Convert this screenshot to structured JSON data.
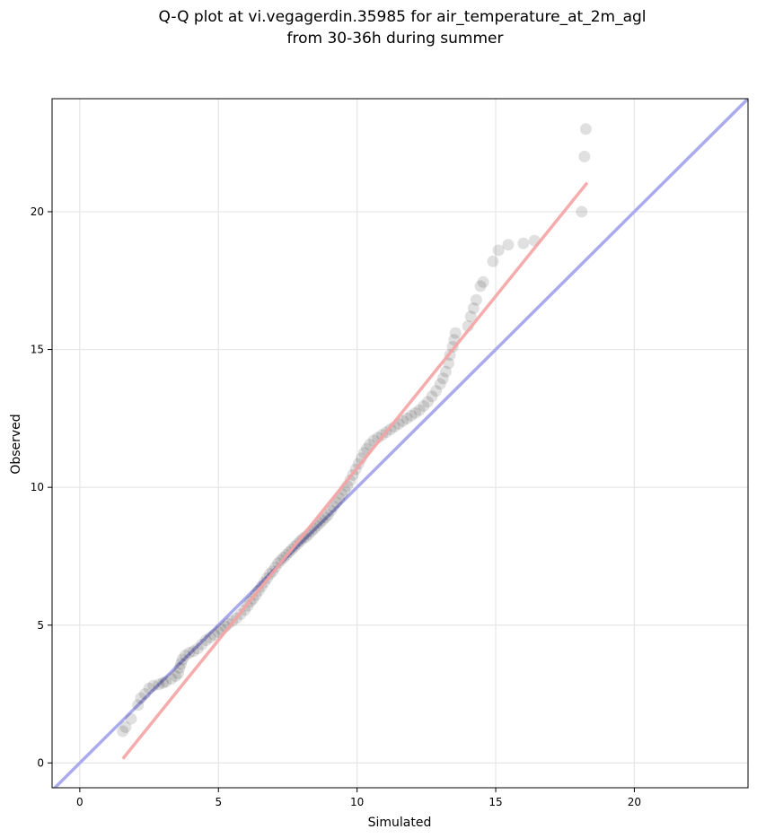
{
  "chart_data": {
    "type": "scatter",
    "title": "Q-Q plot at vi.vegagerdin.35985 for air_temperature_at_2m_agl",
    "subtitle": "from 30-36h during summer",
    "xlabel": "Simulated",
    "ylabel": "Observed",
    "xlim": [
      -1,
      24.1
    ],
    "ylim": [
      -0.9,
      24.1
    ],
    "xticks": [
      0,
      5,
      10,
      15,
      20
    ],
    "yticks": [
      0,
      5,
      10,
      15,
      20
    ],
    "grid": true,
    "colors": {
      "points": "#000000",
      "identity_line": "#aaaaee",
      "fit_line": "#f5a3a3",
      "grid": "#e6e6e6"
    },
    "identity_line": {
      "x": [
        -1,
        24.1
      ],
      "y": [
        -1,
        24.1
      ]
    },
    "fit_line": {
      "x": [
        1.55,
        18.3
      ],
      "y": [
        0.15,
        21.05
      ]
    },
    "points": [
      [
        1.55,
        1.15
      ],
      [
        1.65,
        1.3
      ],
      [
        1.85,
        1.6
      ],
      [
        2.1,
        2.1
      ],
      [
        2.2,
        2.35
      ],
      [
        2.35,
        2.5
      ],
      [
        2.5,
        2.7
      ],
      [
        2.65,
        2.8
      ],
      [
        2.85,
        2.85
      ],
      [
        3.0,
        2.9
      ],
      [
        3.1,
        2.95
      ],
      [
        3.3,
        3.05
      ],
      [
        3.45,
        3.15
      ],
      [
        3.55,
        3.25
      ],
      [
        3.6,
        3.45
      ],
      [
        3.65,
        3.6
      ],
      [
        3.7,
        3.75
      ],
      [
        3.8,
        3.9
      ],
      [
        3.95,
        4.0
      ],
      [
        4.1,
        4.05
      ],
      [
        4.25,
        4.15
      ],
      [
        4.4,
        4.3
      ],
      [
        4.55,
        4.45
      ],
      [
        4.7,
        4.55
      ],
      [
        4.85,
        4.65
      ],
      [
        5.0,
        4.75
      ],
      [
        5.1,
        4.85
      ],
      [
        5.25,
        4.95
      ],
      [
        5.35,
        5.05
      ],
      [
        5.5,
        5.15
      ],
      [
        5.65,
        5.25
      ],
      [
        5.8,
        5.4
      ],
      [
        5.95,
        5.55
      ],
      [
        6.05,
        5.7
      ],
      [
        6.15,
        5.85
      ],
      [
        6.25,
        5.95
      ],
      [
        6.35,
        6.1
      ],
      [
        6.45,
        6.25
      ],
      [
        6.55,
        6.4
      ],
      [
        6.65,
        6.55
      ],
      [
        6.75,
        6.7
      ],
      [
        6.85,
        6.85
      ],
      [
        6.95,
        6.95
      ],
      [
        7.05,
        7.1
      ],
      [
        7.15,
        7.25
      ],
      [
        7.25,
        7.35
      ],
      [
        7.35,
        7.45
      ],
      [
        7.45,
        7.55
      ],
      [
        7.55,
        7.65
      ],
      [
        7.65,
        7.75
      ],
      [
        7.75,
        7.85
      ],
      [
        7.85,
        7.95
      ],
      [
        7.95,
        8.05
      ],
      [
        8.05,
        8.15
      ],
      [
        8.15,
        8.2
      ],
      [
        8.25,
        8.3
      ],
      [
        8.35,
        8.4
      ],
      [
        8.45,
        8.5
      ],
      [
        8.55,
        8.6
      ],
      [
        8.65,
        8.7
      ],
      [
        8.75,
        8.8
      ],
      [
        8.85,
        8.9
      ],
      [
        8.95,
        9.0
      ],
      [
        9.05,
        9.15
      ],
      [
        9.15,
        9.3
      ],
      [
        9.25,
        9.45
      ],
      [
        9.35,
        9.6
      ],
      [
        9.45,
        9.75
      ],
      [
        9.55,
        9.9
      ],
      [
        9.65,
        10.05
      ],
      [
        9.75,
        10.25
      ],
      [
        9.85,
        10.45
      ],
      [
        9.95,
        10.65
      ],
      [
        10.05,
        10.85
      ],
      [
        10.15,
        11.05
      ],
      [
        10.25,
        11.25
      ],
      [
        10.35,
        11.4
      ],
      [
        10.45,
        11.55
      ],
      [
        10.6,
        11.7
      ],
      [
        10.75,
        11.8
      ],
      [
        10.9,
        11.9
      ],
      [
        11.05,
        12.0
      ],
      [
        11.2,
        12.1
      ],
      [
        11.35,
        12.2
      ],
      [
        11.5,
        12.3
      ],
      [
        11.65,
        12.4
      ],
      [
        11.8,
        12.5
      ],
      [
        11.95,
        12.6
      ],
      [
        12.1,
        12.7
      ],
      [
        12.25,
        12.8
      ],
      [
        12.4,
        12.95
      ],
      [
        12.55,
        13.1
      ],
      [
        12.7,
        13.3
      ],
      [
        12.85,
        13.5
      ],
      [
        13.0,
        13.75
      ],
      [
        13.1,
        13.95
      ],
      [
        13.2,
        14.2
      ],
      [
        13.3,
        14.5
      ],
      [
        13.35,
        14.8
      ],
      [
        13.45,
        15.1
      ],
      [
        13.5,
        15.35
      ],
      [
        13.55,
        15.6
      ],
      [
        14.0,
        15.85
      ],
      [
        14.1,
        16.2
      ],
      [
        14.2,
        16.5
      ],
      [
        14.3,
        16.8
      ],
      [
        14.45,
        17.3
      ],
      [
        14.55,
        17.45
      ],
      [
        14.9,
        18.2
      ],
      [
        15.1,
        18.6
      ],
      [
        15.45,
        18.8
      ],
      [
        16.0,
        18.85
      ],
      [
        16.4,
        18.95
      ],
      [
        18.1,
        20.0
      ],
      [
        18.2,
        22.0
      ],
      [
        18.25,
        23.0
      ]
    ]
  }
}
